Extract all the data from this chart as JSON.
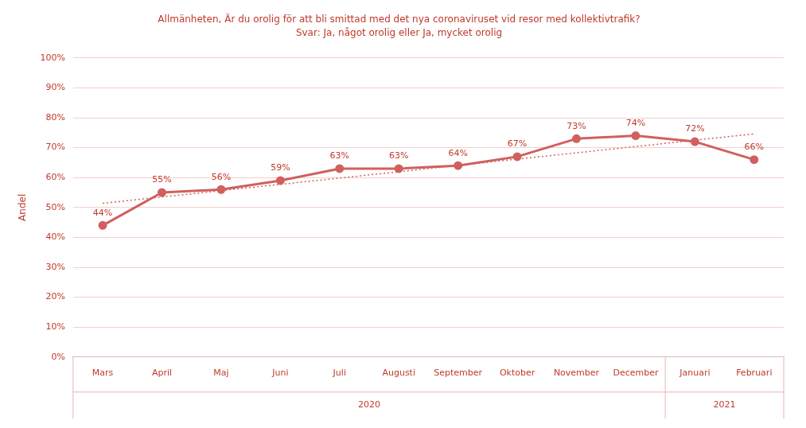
{
  "chart_data": {
    "type": "line",
    "title": "Allmänheten, Är du orolig för att bli smittad med det nya coronaviruset vid resor med kollektivtrafik?",
    "subtitle": "Svar: Ja, något orolig eller Ja, mycket orolig",
    "ylabel": "Andel",
    "categories": [
      "Mars",
      "April",
      "Maj",
      "Juni",
      "Juli",
      "Augusti",
      "September",
      "Oktober",
      "November",
      "December",
      "Januari",
      "Februari"
    ],
    "series": [
      {
        "color": "#d0605e",
        "values": [
          44,
          55,
          56,
          59,
          63,
          63,
          64,
          67,
          73,
          74,
          72,
          66
        ],
        "value_labels": [
          "44%",
          "55%",
          "56%",
          "59%",
          "63%",
          "63%",
          "64%",
          "67%",
          "73%",
          "74%",
          "72%",
          "66%"
        ],
        "marker": "circle",
        "line_style": "solid"
      },
      {
        "color": "#d0605e",
        "values": [
          51.4,
          null,
          null,
          null,
          null,
          null,
          null,
          null,
          null,
          null,
          null,
          74.6
        ],
        "marker": "none",
        "line_style": "dotted"
      }
    ],
    "annotations": [
      "2020",
      "2021"
    ],
    "ylim": [
      0,
      100
    ],
    "yticks": [
      {
        "value": 0,
        "label": "0%"
      },
      {
        "value": 10,
        "label": "10%"
      },
      {
        "value": 20,
        "label": "20%"
      },
      {
        "value": 30,
        "label": "30%"
      },
      {
        "value": 40,
        "label": "40%"
      },
      {
        "value": 50,
        "label": "50%"
      },
      {
        "value": 60,
        "label": "60%"
      },
      {
        "value": 70,
        "label": "70%"
      },
      {
        "value": 80,
        "label": "80%"
      },
      {
        "value": 90,
        "label": "90%"
      },
      {
        "value": 100,
        "label": "100%"
      }
    ],
    "grid": "y",
    "legend": false
  }
}
